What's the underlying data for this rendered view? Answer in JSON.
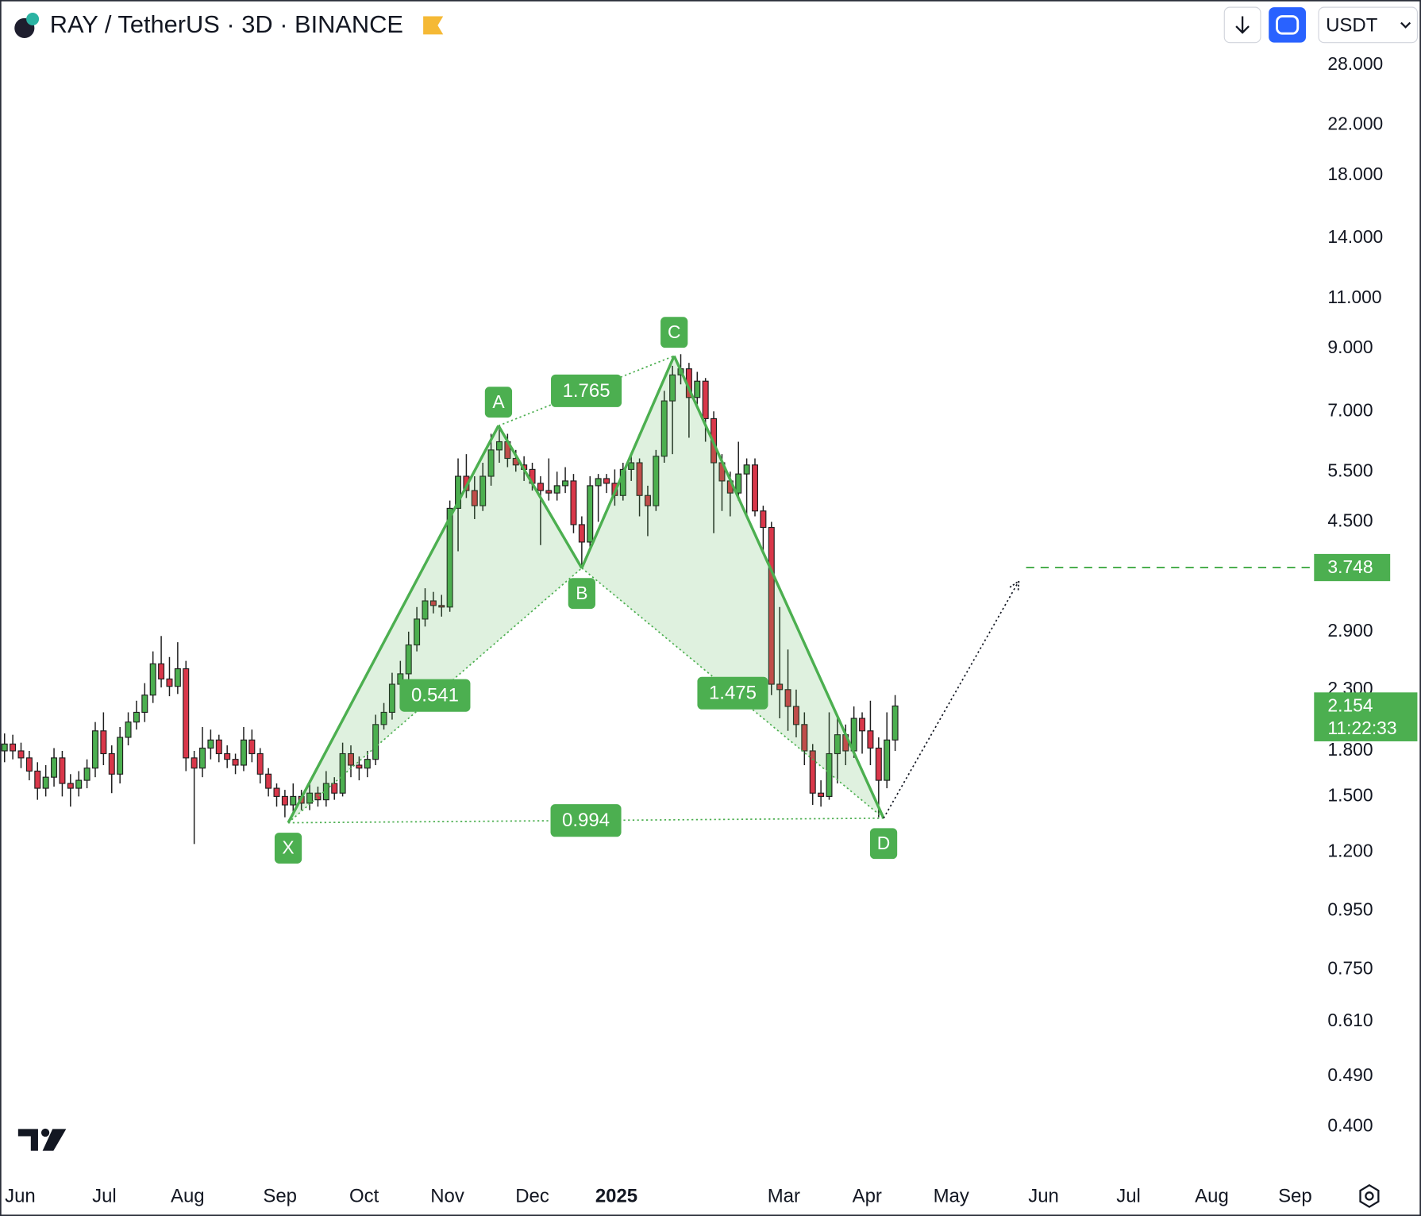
{
  "chart_data": {
    "type": "candlestick",
    "title": "RAY / TetherUS · 3D · BINANCE",
    "currency": "USDT",
    "countdown": "11:22:33",
    "log_scale": true,
    "up_color": "#4caf50",
    "down_color": "#d9374a",
    "pattern_color": "#4caf50",
    "xlim": [
      -0.55,
      158.8
    ],
    "ylim": [
      0.326,
      36.3
    ],
    "yticks": [
      {
        "value": 28,
        "label": "28.000"
      },
      {
        "value": 22,
        "label": "22.000"
      },
      {
        "value": 18,
        "label": "18.000"
      },
      {
        "value": 14,
        "label": "14.000"
      },
      {
        "value": 11,
        "label": "11.000"
      },
      {
        "value": 9,
        "label": "9.000"
      },
      {
        "value": 7,
        "label": "7.000"
      },
      {
        "value": 5.5,
        "label": "5.500"
      },
      {
        "value": 4.5,
        "label": "4.500"
      },
      {
        "value": 2.9,
        "label": "2.900"
      },
      {
        "value": 2.3,
        "label": "2.300"
      },
      {
        "value": 1.8,
        "label": "1.800"
      },
      {
        "value": 1.5,
        "label": "1.500"
      },
      {
        "value": 1.2,
        "label": "1.200"
      },
      {
        "value": 0.95,
        "label": "0.950"
      },
      {
        "value": 0.75,
        "label": "0.750"
      },
      {
        "value": 0.61,
        "label": "0.610"
      },
      {
        "value": 0.49,
        "label": "0.490"
      },
      {
        "value": 0.4,
        "label": "0.400"
      }
    ],
    "xticks": [
      {
        "value": 1.9,
        "label": "Jun"
      },
      {
        "value": 12.1,
        "label": "Jul"
      },
      {
        "value": 22.2,
        "label": "Aug"
      },
      {
        "value": 33.4,
        "label": "Sep"
      },
      {
        "value": 43.6,
        "label": "Oct"
      },
      {
        "value": 53.7,
        "label": "Nov"
      },
      {
        "value": 64,
        "label": "Dec"
      },
      {
        "value": 74.2,
        "label": "2025"
      },
      {
        "value": 94.5,
        "label": "Mar"
      },
      {
        "value": 104.6,
        "label": "Apr"
      },
      {
        "value": 114.8,
        "label": "May"
      },
      {
        "value": 126,
        "label": "Jun"
      },
      {
        "value": 136.3,
        "label": "Jul"
      },
      {
        "value": 146.4,
        "label": "Aug"
      },
      {
        "value": 156.5,
        "label": "Sep"
      }
    ],
    "candles": [
      [
        1.8,
        1.93,
        1.72,
        1.85
      ],
      [
        1.85,
        1.92,
        1.74,
        1.8
      ],
      [
        1.8,
        1.86,
        1.68,
        1.75
      ],
      [
        1.75,
        1.8,
        1.6,
        1.66
      ],
      [
        1.66,
        1.72,
        1.48,
        1.55
      ],
      [
        1.55,
        1.7,
        1.5,
        1.62
      ],
      [
        1.62,
        1.82,
        1.56,
        1.75
      ],
      [
        1.75,
        1.8,
        1.5,
        1.58
      ],
      [
        1.58,
        1.64,
        1.44,
        1.55
      ],
      [
        1.55,
        1.66,
        1.5,
        1.6
      ],
      [
        1.6,
        1.74,
        1.55,
        1.68
      ],
      [
        1.68,
        2.02,
        1.62,
        1.95
      ],
      [
        1.95,
        2.1,
        1.7,
        1.78
      ],
      [
        1.78,
        1.84,
        1.52,
        1.64
      ],
      [
        1.64,
        1.98,
        1.58,
        1.9
      ],
      [
        1.9,
        2.1,
        1.84,
        2.02
      ],
      [
        2.02,
        2.2,
        1.96,
        2.1
      ],
      [
        2.1,
        2.36,
        2.02,
        2.25
      ],
      [
        2.25,
        2.68,
        2.18,
        2.55
      ],
      [
        2.55,
        2.85,
        2.32,
        2.4
      ],
      [
        2.4,
        2.62,
        2.24,
        2.33
      ],
      [
        2.33,
        2.78,
        2.26,
        2.5
      ],
      [
        2.5,
        2.58,
        1.66,
        1.75
      ],
      [
        1.75,
        1.8,
        1.24,
        1.68
      ],
      [
        1.68,
        1.98,
        1.62,
        1.82
      ],
      [
        1.82,
        1.96,
        1.74,
        1.88
      ],
      [
        1.88,
        1.92,
        1.72,
        1.78
      ],
      [
        1.78,
        1.84,
        1.68,
        1.74
      ],
      [
        1.74,
        1.78,
        1.64,
        1.7
      ],
      [
        1.7,
        1.98,
        1.66,
        1.88
      ],
      [
        1.88,
        1.96,
        1.72,
        1.78
      ],
      [
        1.78,
        1.82,
        1.58,
        1.64
      ],
      [
        1.64,
        1.68,
        1.5,
        1.55
      ],
      [
        1.55,
        1.58,
        1.44,
        1.5
      ],
      [
        1.5,
        1.54,
        1.38,
        1.45
      ],
      [
        1.45,
        1.58,
        1.41,
        1.5
      ],
      [
        1.5,
        1.54,
        1.42,
        1.46
      ],
      [
        1.46,
        1.6,
        1.42,
        1.52
      ],
      [
        1.52,
        1.56,
        1.44,
        1.48
      ],
      [
        1.48,
        1.66,
        1.44,
        1.58
      ],
      [
        1.58,
        1.62,
        1.48,
        1.52
      ],
      [
        1.52,
        1.86,
        1.5,
        1.78
      ],
      [
        1.78,
        1.84,
        1.62,
        1.7
      ],
      [
        1.7,
        1.76,
        1.6,
        1.68
      ],
      [
        1.68,
        1.8,
        1.62,
        1.74
      ],
      [
        1.74,
        2.08,
        1.7,
        2.0
      ],
      [
        2.0,
        2.18,
        1.96,
        2.1
      ],
      [
        2.1,
        2.46,
        2.04,
        2.35
      ],
      [
        2.35,
        2.58,
        2.28,
        2.45
      ],
      [
        2.45,
        2.9,
        2.38,
        2.75
      ],
      [
        2.75,
        3.2,
        2.68,
        3.05
      ],
      [
        3.05,
        3.45,
        2.96,
        3.28
      ],
      [
        3.28,
        3.4,
        3.12,
        3.22
      ],
      [
        3.22,
        3.36,
        3.08,
        3.2
      ],
      [
        3.2,
        4.9,
        3.14,
        4.75
      ],
      [
        4.75,
        5.8,
        4.0,
        5.4
      ],
      [
        5.4,
        5.9,
        4.95,
        5.1
      ],
      [
        5.1,
        5.4,
        4.55,
        4.8
      ],
      [
        4.8,
        5.7,
        4.7,
        5.4
      ],
      [
        5.4,
        6.4,
        5.2,
        6.0
      ],
      [
        6.0,
        6.6,
        5.7,
        6.2
      ],
      [
        6.2,
        6.4,
        5.6,
        5.8
      ],
      [
        5.8,
        6.0,
        5.5,
        5.65
      ],
      [
        5.65,
        5.85,
        5.3,
        5.55
      ],
      [
        5.55,
        5.7,
        5.1,
        5.25
      ],
      [
        5.25,
        5.4,
        4.1,
        5.1
      ],
      [
        5.1,
        5.8,
        4.9,
        5.05
      ],
      [
        5.05,
        5.5,
        4.9,
        5.2
      ],
      [
        5.2,
        5.6,
        5.05,
        5.3
      ],
      [
        5.3,
        5.45,
        4.3,
        4.45
      ],
      [
        4.45,
        4.6,
        3.75,
        4.15
      ],
      [
        4.15,
        5.4,
        4.05,
        5.2
      ],
      [
        5.2,
        5.45,
        4.5,
        5.35
      ],
      [
        5.35,
        5.45,
        5.05,
        5.25
      ],
      [
        5.25,
        5.55,
        4.8,
        5.0
      ],
      [
        5.0,
        5.7,
        4.9,
        5.55
      ],
      [
        5.55,
        5.9,
        5.3,
        5.7
      ],
      [
        5.7,
        5.8,
        4.6,
        5.0
      ],
      [
        5.0,
        5.2,
        4.25,
        4.8
      ],
      [
        4.8,
        6.0,
        4.7,
        5.85
      ],
      [
        5.85,
        7.6,
        5.7,
        7.3
      ],
      [
        7.3,
        8.4,
        5.9,
        8.1
      ],
      [
        8.1,
        8.8,
        7.8,
        8.3
      ],
      [
        8.3,
        8.5,
        6.3,
        7.4
      ],
      [
        7.4,
        8.2,
        7.2,
        7.9
      ],
      [
        7.9,
        8.0,
        6.2,
        6.8
      ],
      [
        6.8,
        7.0,
        4.3,
        5.7
      ],
      [
        5.7,
        5.9,
        4.7,
        5.3
      ],
      [
        5.3,
        5.5,
        4.6,
        5.05
      ],
      [
        5.05,
        6.2,
        4.9,
        5.45
      ],
      [
        5.45,
        5.8,
        4.6,
        5.65
      ],
      [
        5.65,
        5.8,
        4.6,
        4.7
      ],
      [
        4.7,
        4.8,
        4.0,
        4.4
      ],
      [
        4.4,
        4.5,
        2.25,
        2.35
      ],
      [
        2.35,
        3.2,
        2.05,
        2.3
      ],
      [
        2.3,
        2.7,
        1.95,
        2.15
      ],
      [
        2.15,
        2.3,
        1.9,
        2.0
      ],
      [
        2.0,
        2.1,
        1.7,
        1.8
      ],
      [
        1.8,
        1.85,
        1.45,
        1.52
      ],
      [
        1.52,
        1.6,
        1.44,
        1.5
      ],
      [
        1.5,
        2.1,
        1.48,
        1.78
      ],
      [
        1.78,
        2.05,
        1.58,
        1.92
      ],
      [
        1.92,
        2.0,
        1.7,
        1.8
      ],
      [
        1.8,
        2.15,
        1.75,
        2.05
      ],
      [
        2.05,
        2.1,
        1.78,
        1.95
      ],
      [
        1.95,
        2.2,
        1.7,
        1.82
      ],
      [
        1.82,
        1.9,
        1.38,
        1.6
      ],
      [
        1.6,
        2.1,
        1.55,
        1.88
      ],
      [
        1.88,
        2.25,
        1.8,
        2.154
      ]
    ],
    "pattern": {
      "points": [
        {
          "label": "X",
          "x": 34.4,
          "y": 1.35
        },
        {
          "label": "A",
          "x": 59.9,
          "y": 6.61
        },
        {
          "label": "B",
          "x": 70.0,
          "y": 3.74
        },
        {
          "label": "C",
          "x": 81.2,
          "y": 8.74
        },
        {
          "label": "D",
          "x": 106.6,
          "y": 1.375
        }
      ],
      "ratios": [
        {
          "from": 0,
          "to": 2,
          "value": 0.541
        },
        {
          "from": 1,
          "to": 3,
          "value": 1.765
        },
        {
          "from": 2,
          "to": 4,
          "value": 1.475
        },
        {
          "from": 0,
          "to": 4,
          "value": 0.994
        }
      ]
    },
    "projection": {
      "x": 123,
      "y": 3.55
    },
    "target": 3.748
  }
}
